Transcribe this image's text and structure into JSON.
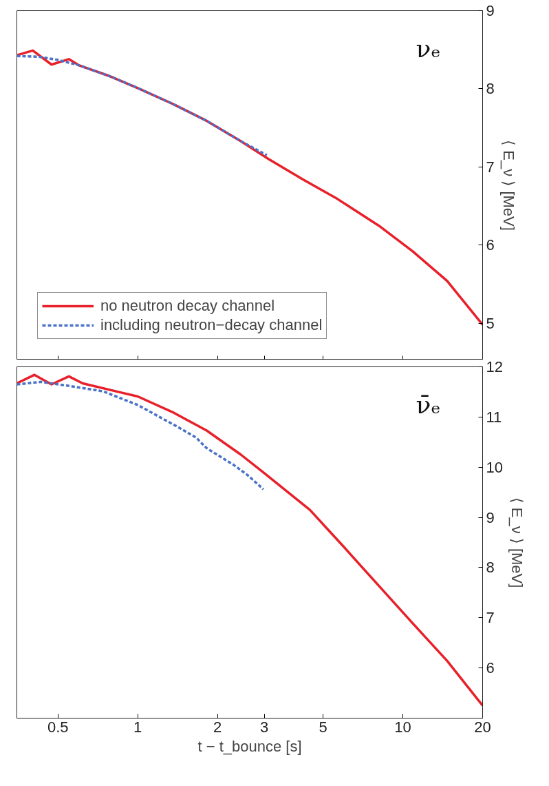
{
  "chart_data": [
    {
      "type": "line",
      "annotations": [
        "νₑ"
      ],
      "x": [
        0.35,
        0.402,
        0.473,
        0.55,
        0.601,
        0.787,
        1.0,
        1.35,
        1.82,
        2.45,
        3.12,
        4.2,
        5.67,
        8.11,
        10.9,
        14.7,
        20
      ],
      "series": [
        {
          "name": "no neutron decay channel",
          "color": "#e8202a",
          "line_style": "solid",
          "values": [
            8.43,
            8.49,
            8.31,
            8.38,
            8.3,
            8.16,
            8.01,
            7.81,
            7.59,
            7.33,
            7.1,
            6.84,
            6.59,
            6.25,
            5.92,
            5.54,
            4.98
          ]
        },
        {
          "name": "including neutron−decay channel",
          "color": "#4a72c8",
          "line_style": "dashed",
          "x": [
            0.35,
            0.426,
            0.5,
            0.601,
            0.787,
            1.0,
            1.35,
            1.82,
            2.45,
            3.07
          ],
          "values": [
            8.42,
            8.41,
            8.37,
            8.3,
            8.16,
            8.01,
            7.81,
            7.59,
            7.33,
            7.15
          ]
        }
      ],
      "log": "x",
      "xlim": [
        0.35,
        20
      ],
      "xticks": [
        0.5,
        1,
        2,
        3,
        5,
        10,
        20
      ],
      "ylim": [
        4.53,
        9
      ],
      "yticks": [
        5,
        6,
        7,
        8,
        9
      ],
      "ylabel": "⟨ E_ν ⟩ [MeV]",
      "tick_labels": "y",
      "grid": false,
      "legend": "bottom left",
      "marker": "none"
    },
    {
      "type": "line",
      "annotations": [
        "ν̄ₑ"
      ],
      "x": [
        0.35,
        0.408,
        0.473,
        0.55,
        0.62,
        0.861,
        1.0,
        1.35,
        1.82,
        2.45,
        3.02,
        4.46,
        6.02,
        8.11,
        10.9,
        14.7,
        20
      ],
      "series": [
        {
          "color": "#e8202a",
          "line_style": "solid",
          "values": [
            11.67,
            11.84,
            11.65,
            11.81,
            11.67,
            11.49,
            11.41,
            11.1,
            10.73,
            10.25,
            9.87,
            9.15,
            8.4,
            7.64,
            6.89,
            6.14,
            5.25
          ]
        },
        {
          "color": "#4a72c8",
          "line_style": "dashed",
          "x": [
            0.35,
            0.433,
            0.584,
            0.742,
            1.0,
            1.43,
            1.66,
            1.82,
            2.31,
            2.6,
            2.98
          ],
          "values": [
            11.65,
            11.7,
            11.6,
            11.51,
            11.24,
            10.79,
            10.59,
            10.38,
            10.04,
            9.84,
            9.56
          ]
        }
      ],
      "log": "x",
      "xlim": [
        0.35,
        20
      ],
      "xticks": [
        0.5,
        1,
        2,
        3,
        5,
        10,
        20
      ],
      "ylim": [
        5,
        12
      ],
      "yticks": [
        6,
        7,
        8,
        9,
        10,
        11,
        12
      ],
      "xlabel": "t − t_bounce [s]",
      "ylabel": "⟨ E_ν ⟩ [MeV]",
      "grid": false,
      "legend": false,
      "marker": "none"
    }
  ]
}
